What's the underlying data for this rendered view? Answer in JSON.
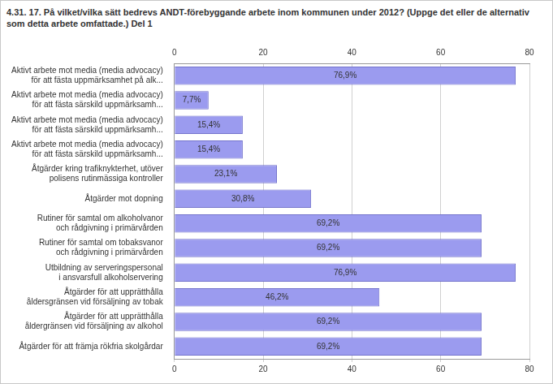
{
  "chart_data": {
    "type": "bar",
    "orientation": "horizontal",
    "title": "4.31. 17. På vilket/vilka sätt bedrevs ANDT-förebyggande arbete inom kommunen under 2012? (Uppge det eller de alternativ som detta arbete omfattade.) Del 1",
    "categories": [
      "Aktivt arbete mot media (media advocacy)\nför att fästa uppmärksamhet på alk...",
      "Aktivt arbete mot media (media advocacy)\nför att fästa särskild uppmärksamh...",
      "Aktivt arbete mot media (media advocacy)\nför att fästa särskild uppmärksamh...",
      "Aktivt arbete mot media (media advocacy)\nför att fästa särskild uppmärksamh...",
      "Åtgärder kring trafiknykterhet, utöver\npolisens rutinmässiga kontroller",
      "Åtgärder mot dopning",
      "Rutiner för samtal om alkoholvanor\noch rådgivning i primärvården",
      "Rutiner för samtal om tobaksvanor\noch rådgivning i primärvården",
      "Utbildning av serveringspersonal\ni ansvarsfull alkoholservering",
      "Åtgärder för att upprätthålla\nåldersgränsen vid försäljning av tobak",
      "Åtgärder för att upprätthålla\nåldergränsen vid försäljning av alkohol",
      "Åtgärder för att främja rökfria skolgårdar"
    ],
    "values": [
      76.9,
      7.7,
      15.4,
      15.4,
      23.1,
      30.8,
      69.2,
      69.2,
      76.9,
      46.2,
      69.2,
      69.2
    ],
    "value_labels": [
      "76,9%",
      "7,7%",
      "15,4%",
      "15,4%",
      "23,1%",
      "30,8%",
      "69,2%",
      "69,2%",
      "76,9%",
      "46,2%",
      "69,2%",
      "69,2%"
    ],
    "data_labels": true,
    "color": "#9b9bef",
    "xlim": [
      0,
      80
    ],
    "xticks": [
      0,
      20,
      40,
      60,
      80
    ],
    "grid": true
  }
}
